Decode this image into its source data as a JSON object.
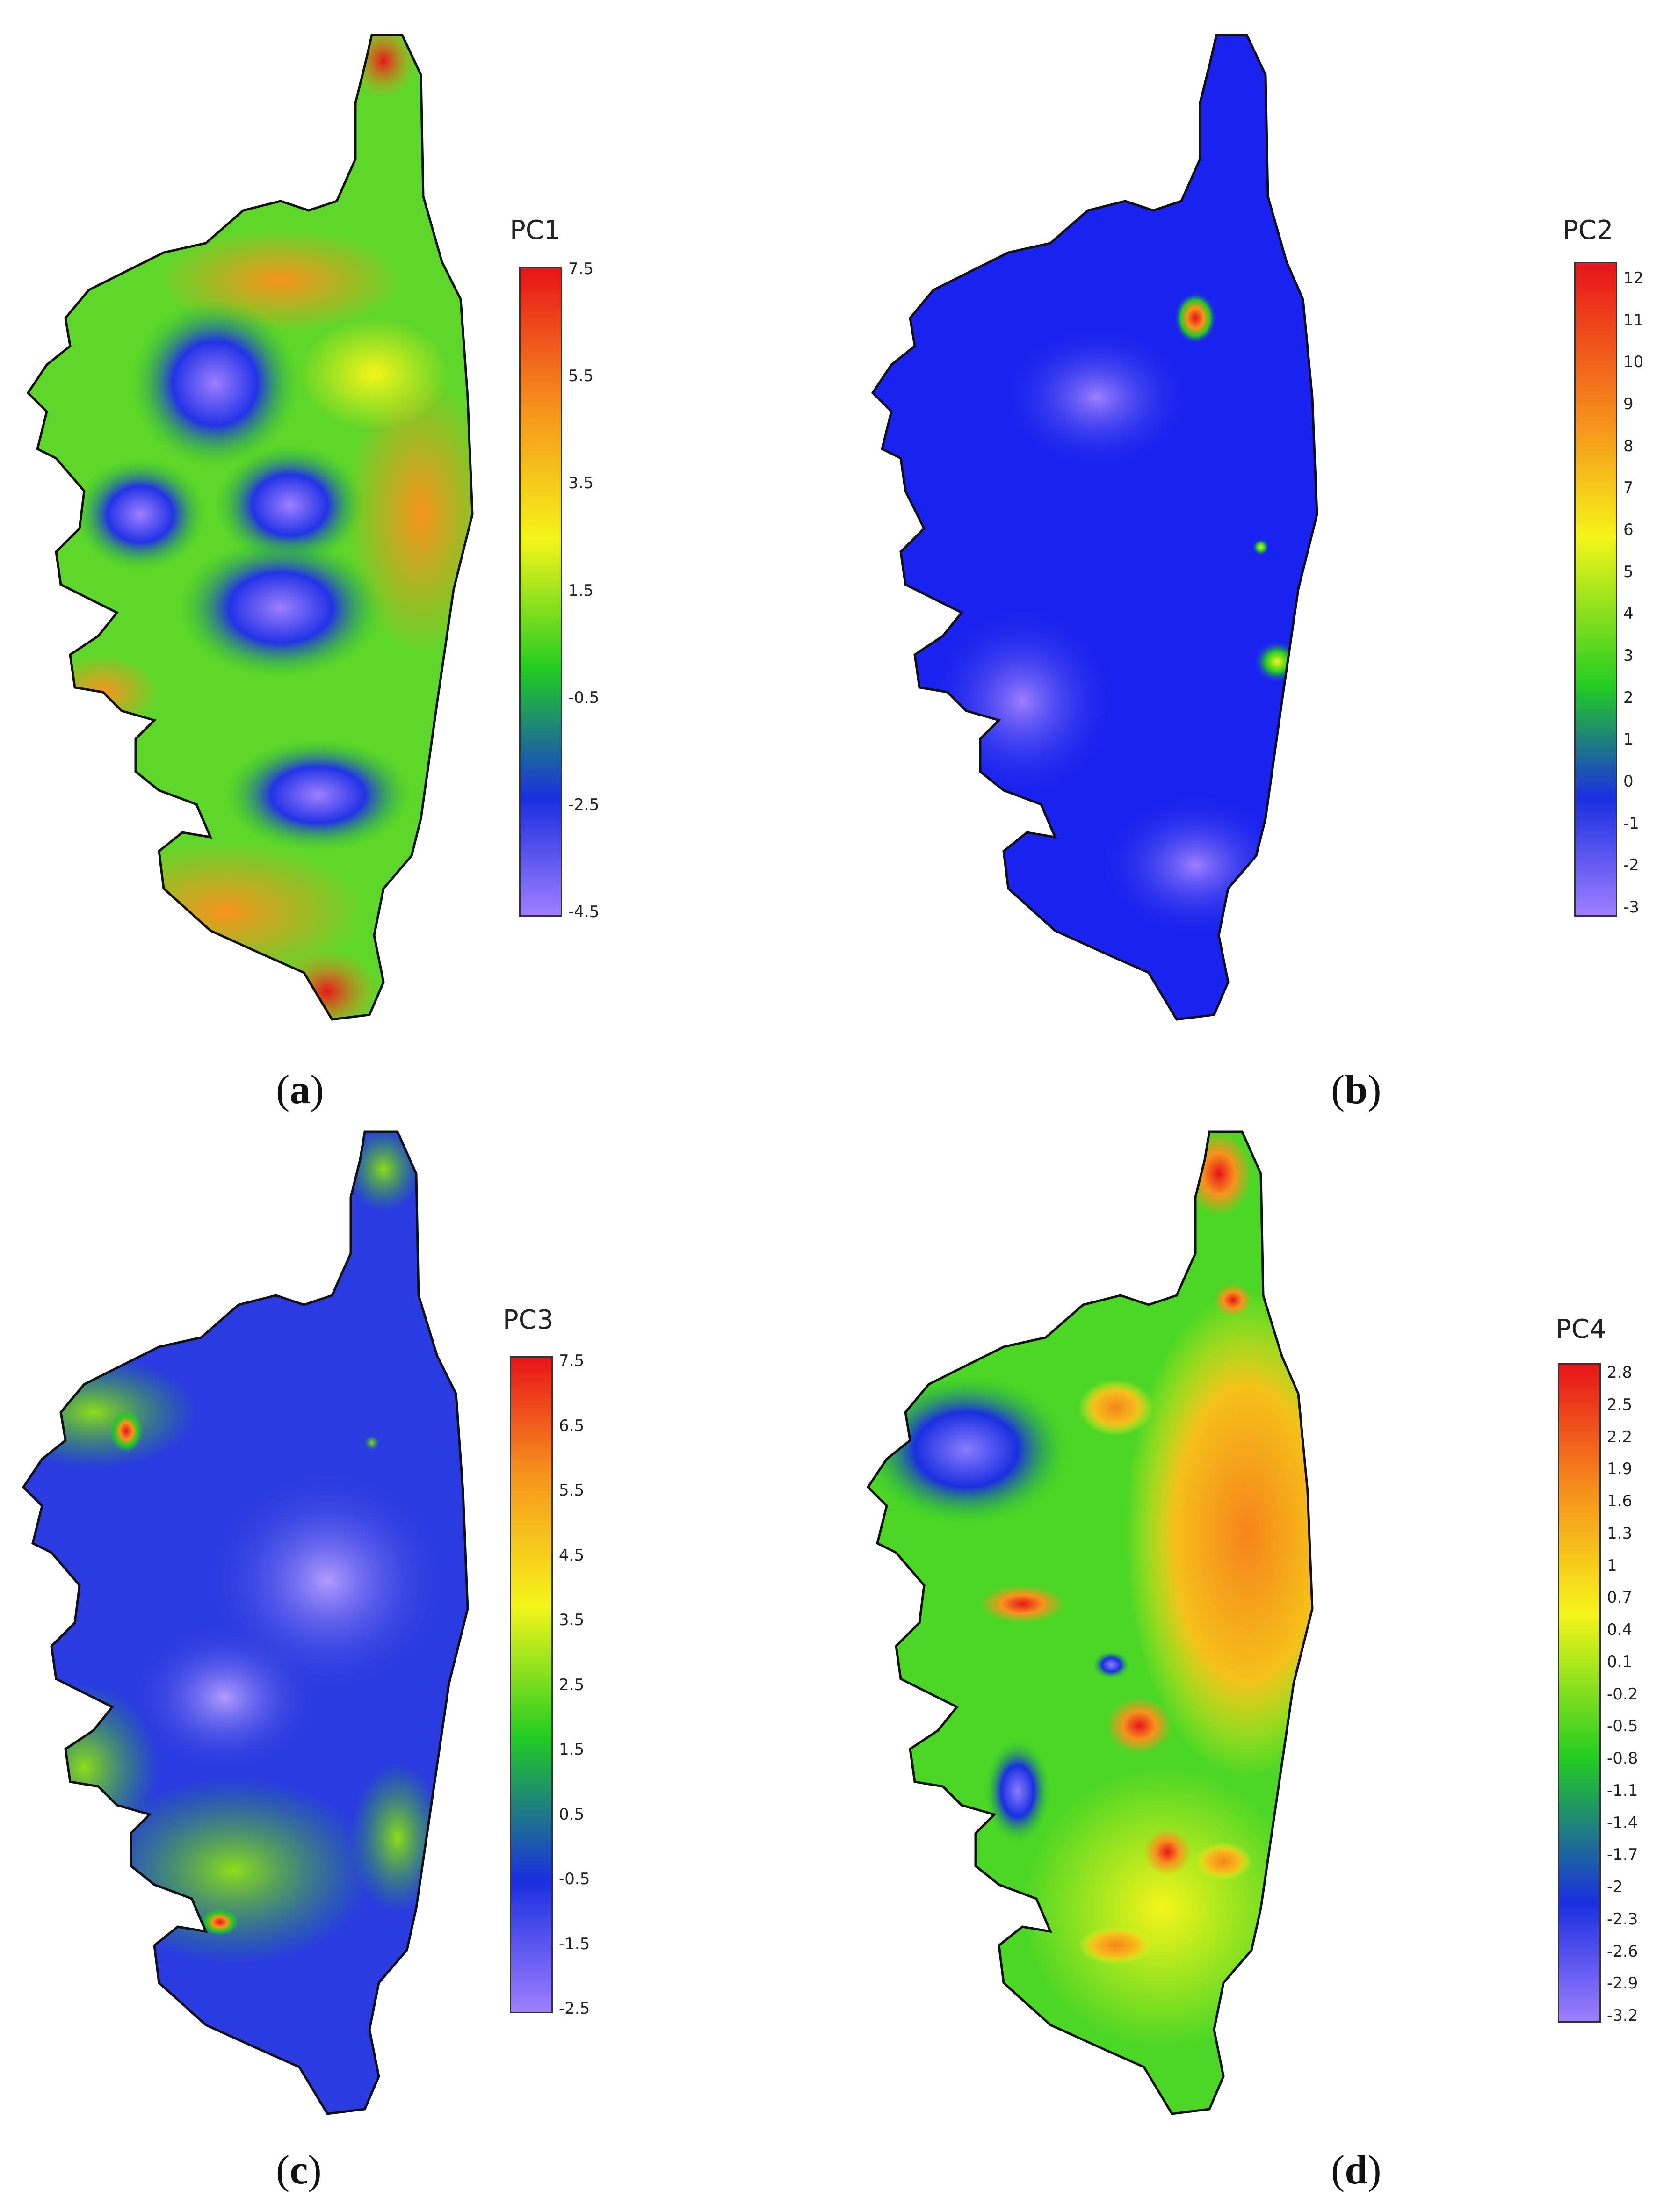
{
  "panels": [
    {
      "id": "a",
      "label_open": "(",
      "label_letter": "a",
      "label_close": ")",
      "legend_title": "PC1",
      "ticks": [
        "7.5",
        "5.5",
        "3.5",
        "1.5",
        "-0.5",
        "-2.5",
        "-4.5"
      ],
      "scale": "rainbow"
    },
    {
      "id": "b",
      "label_open": "(",
      "label_letter": "b",
      "label_close": ")",
      "legend_title": "PC2",
      "ticks": [
        "12",
        "11",
        "10",
        "9",
        "8",
        "7",
        "6",
        "5",
        "4",
        "3",
        "2",
        "1",
        "0",
        "-1",
        "-2",
        "-3"
      ],
      "scale": "rainbow"
    },
    {
      "id": "c",
      "label_open": "(",
      "label_letter": "c",
      "label_close": ")",
      "legend_title": "PC3",
      "ticks": [
        "7.5",
        "6.5",
        "5.5",
        "4.5",
        "3.5",
        "2.5",
        "1.5",
        "0.5",
        "-0.5",
        "-1.5",
        "-2.5"
      ],
      "scale": "rainbow"
    },
    {
      "id": "d",
      "label_open": "(",
      "label_letter": "d",
      "label_close": ")",
      "legend_title": "PC4",
      "ticks": [
        "2.8",
        "2.5",
        "2.2",
        "1.9",
        "1.6",
        "1.3",
        "1",
        "0.7",
        "0.4",
        "0.1",
        "-0.2",
        "-0.5",
        "-0.8",
        "-1.1",
        "-1.4",
        "-1.7",
        "-2",
        "-2.3",
        "-2.6",
        "-2.9",
        "-3.2"
      ],
      "scale": "rainbow"
    }
  ],
  "colors": {
    "scale_stops": [
      "#e8141a",
      "#f7941d",
      "#f5f51a",
      "#22cc22",
      "#1a2fe0",
      "#9e7fff"
    ],
    "outline": "#111111",
    "background": "#ffffff"
  }
}
